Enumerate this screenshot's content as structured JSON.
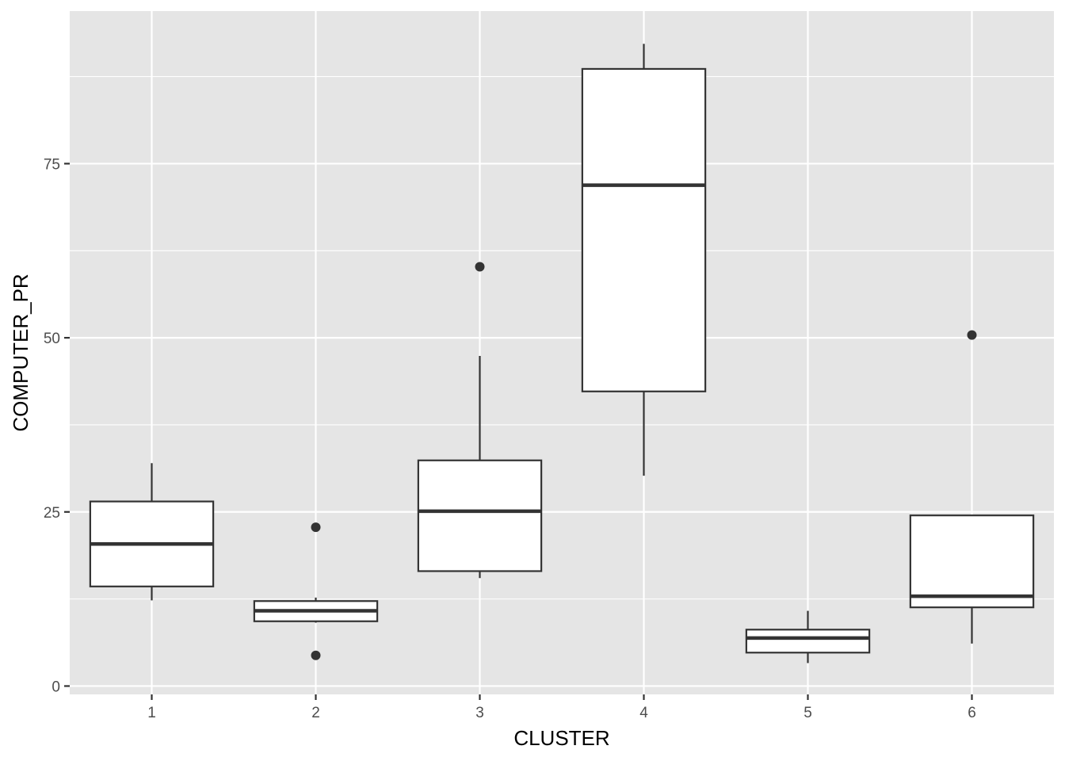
{
  "chart_data": {
    "type": "boxplot",
    "xlabel": "CLUSTER",
    "ylabel": "COMPUTER_PR",
    "ylim": [
      -1.2,
      96.9
    ],
    "yticks": [
      0,
      25,
      50,
      75
    ],
    "grid": true,
    "categories": [
      "1",
      "2",
      "3",
      "4",
      "5",
      "6"
    ],
    "boxes": [
      {
        "category": "1",
        "whisker_low": 12.3,
        "q1": 14.3,
        "median": 20.4,
        "q3": 26.5,
        "whisker_high": 32.0,
        "outliers": []
      },
      {
        "category": "2",
        "whisker_low": 9.1,
        "q1": 9.3,
        "median": 10.8,
        "q3": 12.2,
        "whisker_high": 12.7,
        "outliers": [
          22.8,
          4.4
        ]
      },
      {
        "category": "3",
        "whisker_low": 15.5,
        "q1": 16.5,
        "median": 25.1,
        "q3": 32.4,
        "whisker_high": 47.4,
        "outliers": [
          60.2
        ]
      },
      {
        "category": "4",
        "whisker_low": 30.2,
        "q1": 42.3,
        "median": 71.9,
        "q3": 88.6,
        "whisker_high": 92.2,
        "outliers": []
      },
      {
        "category": "5",
        "whisker_low": 3.3,
        "q1": 4.8,
        "median": 6.9,
        "q3": 8.1,
        "whisker_high": 10.8,
        "outliers": []
      },
      {
        "category": "6",
        "whisker_low": 6.1,
        "q1": 11.3,
        "median": 12.9,
        "q3": 24.5,
        "whisker_high": 24.5,
        "outliers": [
          50.4
        ]
      }
    ],
    "colors": {
      "panel": "#e5e5e5",
      "grid": "#ffffff",
      "box_fill": "#ffffff",
      "box_line": "#333333",
      "point": "#333333",
      "tick": "#333333",
      "tick_label": "#4d4d4d",
      "title": "#000000"
    }
  }
}
